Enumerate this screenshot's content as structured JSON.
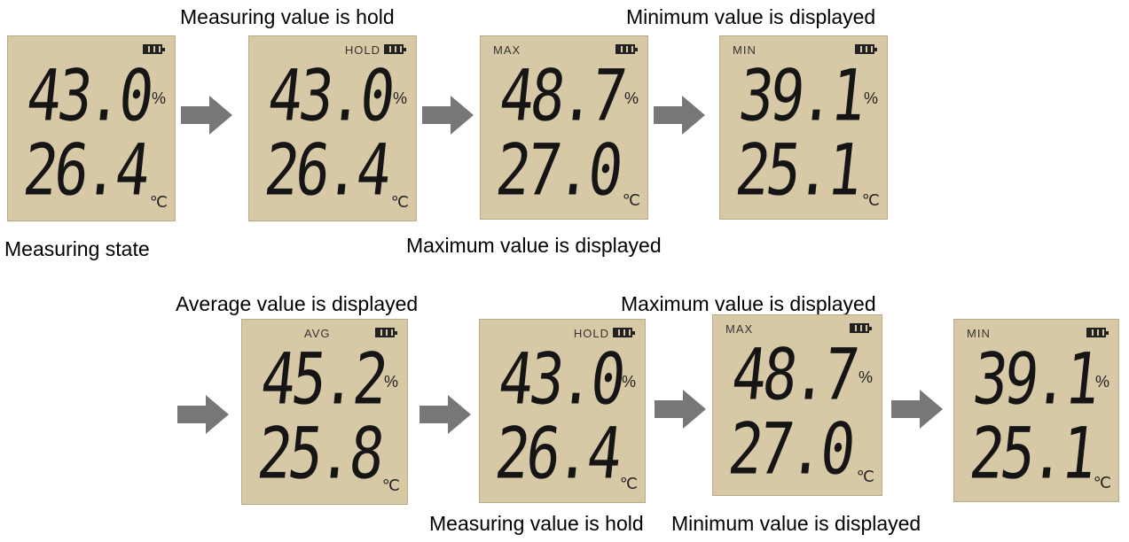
{
  "captions": [
    "Measuring value is hold",
    "Minimum value is displayed",
    "Measuring state",
    "Maximum value is displayed",
    "Average value is displayed",
    "Maximum value is displayed",
    "Measuring value is hold",
    "Minimum value is displayed"
  ],
  "screens": [
    {
      "humidity": "43.0",
      "humidity_unit": "%",
      "temperature": "26.4",
      "temperature_unit": "℃"
    },
    {
      "mode": "HOLD",
      "humidity": "43.0",
      "humidity_unit": "%",
      "temperature": "26.4",
      "temperature_unit": "℃"
    },
    {
      "mode": "MAX",
      "humidity": "48.7",
      "humidity_unit": "%",
      "temperature": "27.0",
      "temperature_unit": "℃"
    },
    {
      "mode": "MIN",
      "humidity": "39.1",
      "humidity_unit": "%",
      "temperature": "25.1",
      "temperature_unit": "℃"
    },
    {
      "mode": "AVG",
      "humidity": "45.2",
      "humidity_unit": "%",
      "temperature": "25.8",
      "temperature_unit": "℃"
    },
    {
      "mode": "HOLD",
      "humidity": "43.0",
      "humidity_unit": "%",
      "temperature": "26.4",
      "temperature_unit": "℃"
    },
    {
      "mode": "MAX",
      "humidity": "48.7",
      "humidity_unit": "%",
      "temperature": "27.0",
      "temperature_unit": "℃"
    },
    {
      "mode": "MIN",
      "humidity": "39.1",
      "humidity_unit": "%",
      "temperature": "25.1",
      "temperature_unit": "℃"
    }
  ]
}
